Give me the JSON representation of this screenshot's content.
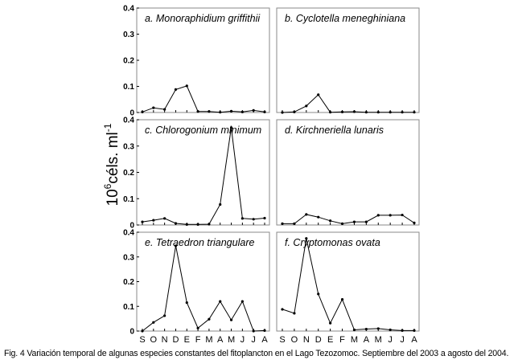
{
  "y_axis_label": {
    "base": "10",
    "exp": "6",
    "text": "céls. ml",
    "exp2": "-1"
  },
  "x_month_labels": [
    "S",
    "O",
    "N",
    "D",
    "E",
    "F",
    "M",
    "A",
    "M",
    "J",
    "J",
    "A"
  ],
  "caption": "Fig. 4 Variación temporal de algunas especies constantes del fitoplancton en el Lago Tezozomoc. Septiembre del 2003 a agosto del 2004.",
  "chart_data": [
    {
      "type": "line",
      "title": "a. Monoraphidium griffithii",
      "categories": [
        "S",
        "O",
        "N",
        "D",
        "E",
        "F",
        "M",
        "A",
        "M",
        "J",
        "J",
        "A"
      ],
      "values": [
        0.002,
        0.018,
        0.012,
        0.088,
        0.102,
        0.004,
        0.004,
        0.001,
        0.005,
        0.002,
        0.008,
        0.002
      ],
      "ylim": [
        0,
        0.4
      ],
      "yticks": [
        "0",
        "0.1",
        "0.2",
        "0.3",
        "0.4"
      ]
    },
    {
      "type": "line",
      "title": "b. Cyclotella meneghiniana",
      "categories": [
        "S",
        "O",
        "N",
        "D",
        "E",
        "F",
        "M",
        "A",
        "M",
        "J",
        "J",
        "A"
      ],
      "values": [
        0.0,
        0.002,
        0.025,
        0.068,
        0.001,
        0.002,
        0.003,
        0.001,
        0.001,
        0.001,
        0.001,
        0.001
      ],
      "ylim": [
        0,
        0.4
      ],
      "yticks": []
    },
    {
      "type": "line",
      "title": "c. Chlorogonium minimum",
      "categories": [
        "S",
        "O",
        "N",
        "D",
        "E",
        "F",
        "M",
        "A",
        "M",
        "J",
        "J",
        "A"
      ],
      "values": [
        0.012,
        0.018,
        0.025,
        0.006,
        0.002,
        0.002,
        0.003,
        0.078,
        0.37,
        0.025,
        0.022,
        0.026
      ],
      "ylim": [
        0,
        0.4
      ],
      "yticks": [
        "0",
        "0.1",
        "0.2",
        "0.3",
        "0.4"
      ]
    },
    {
      "type": "line",
      "title": "d. Kirchneriella lunaris",
      "categories": [
        "S",
        "O",
        "N",
        "D",
        "E",
        "F",
        "M",
        "A",
        "M",
        "J",
        "J",
        "A"
      ],
      "values": [
        0.005,
        0.005,
        0.04,
        0.03,
        0.016,
        0.005,
        0.012,
        0.012,
        0.037,
        0.037,
        0.038,
        0.008
      ],
      "ylim": [
        0,
        0.4
      ],
      "yticks": []
    },
    {
      "type": "line",
      "title": "e. Tetraedron triangulare",
      "categories": [
        "S",
        "O",
        "N",
        "D",
        "E",
        "F",
        "M",
        "A",
        "M",
        "J",
        "J",
        "A"
      ],
      "values": [
        0.0,
        0.035,
        0.062,
        0.345,
        0.115,
        0.012,
        0.048,
        0.12,
        0.045,
        0.12,
        0.0,
        0.002
      ],
      "ylim": [
        0,
        0.4
      ],
      "yticks": [
        "0",
        "0.1",
        "0.2",
        "0.3",
        "0.4"
      ]
    },
    {
      "type": "line",
      "title": "f. Cryptomonas ovata",
      "categories": [
        "S",
        "O",
        "N",
        "D",
        "E",
        "F",
        "M",
        "A",
        "M",
        "J",
        "J",
        "A"
      ],
      "values": [
        0.088,
        0.072,
        0.375,
        0.15,
        0.032,
        0.128,
        0.005,
        0.008,
        0.01,
        0.005,
        0.002,
        0.002
      ],
      "ylim": [
        0,
        0.4
      ],
      "yticks": []
    }
  ]
}
